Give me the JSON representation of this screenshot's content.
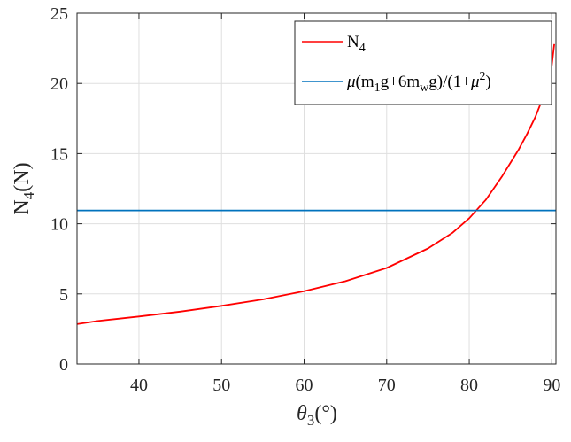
{
  "chart_data": {
    "type": "line",
    "title": "",
    "xlabel": {
      "symbol": "θ",
      "sub": "3",
      "rest": "(°)"
    },
    "ylabel": {
      "symbol": "N",
      "sub": "4",
      "rest": "(N)"
    },
    "xlim": [
      32.5,
      90.5
    ],
    "ylim": [
      0,
      25
    ],
    "xticks": [
      40,
      50,
      60,
      70,
      80,
      90
    ],
    "yticks": [
      0,
      5,
      10,
      15,
      20,
      25
    ],
    "grid": true,
    "legend_position": "top-right",
    "series": [
      {
        "name": "N4",
        "legend": {
          "main": "N",
          "sub": "4"
        },
        "color": "#ff0000",
        "x": [
          32.5,
          35,
          40,
          45,
          50,
          55,
          60,
          65,
          70,
          75,
          78,
          80,
          82,
          84,
          86,
          87,
          88,
          89,
          89.5,
          90,
          90.3
        ],
        "y": [
          2.85,
          3.07,
          3.39,
          3.74,
          4.15,
          4.61,
          5.19,
          5.9,
          6.85,
          8.24,
          9.37,
          10.4,
          11.7,
          13.4,
          15.3,
          16.4,
          17.6,
          19.1,
          20.0,
          21.3,
          22.8
        ]
      },
      {
        "name": "μ(m1g+6mwg)/(1+μ²)",
        "legend": {
          "mu": "μ",
          "p1": "(m",
          "s1": "1",
          "p2": "g+6m",
          "s2": "w",
          "p3": "g)/(1+",
          "mu2": "μ",
          "sup": "2",
          "p4": ")"
        },
        "color": "#0072bd",
        "x": [
          32.5,
          90.5
        ],
        "y": [
          10.95,
          10.95
        ]
      }
    ]
  }
}
